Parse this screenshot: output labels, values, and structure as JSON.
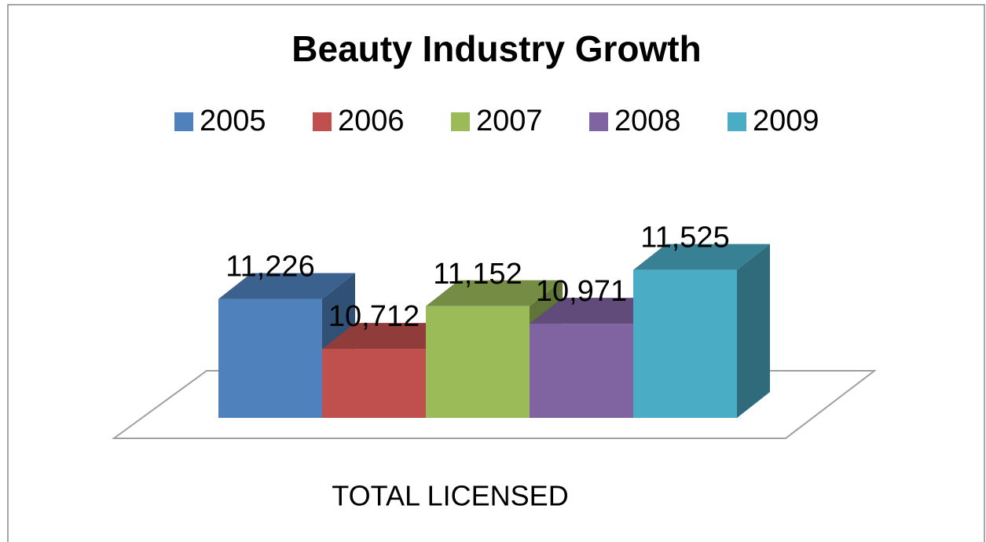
{
  "chart_data": {
    "type": "bar3d",
    "title": "Beauty Industry Growth",
    "categories": [
      "TOTAL LICENSED"
    ],
    "series": [
      {
        "name": "2005",
        "color": "#4f81bd",
        "values": [
          11226
        ],
        "value_labels": [
          "11,226"
        ]
      },
      {
        "name": "2006",
        "color": "#c0504d",
        "values": [
          10712
        ],
        "value_labels": [
          "10,712"
        ]
      },
      {
        "name": "2007",
        "color": "#9bbb59",
        "values": [
          11152
        ],
        "value_labels": [
          "11,152"
        ]
      },
      {
        "name": "2008",
        "color": "#8064a2",
        "values": [
          10971
        ],
        "value_labels": [
          "10,971"
        ]
      },
      {
        "name": "2009",
        "color": "#4bacc6",
        "values": [
          11525
        ],
        "value_labels": [
          "11,525"
        ]
      }
    ],
    "ylim": [
      10000,
      12000
    ],
    "legend": "top"
  }
}
